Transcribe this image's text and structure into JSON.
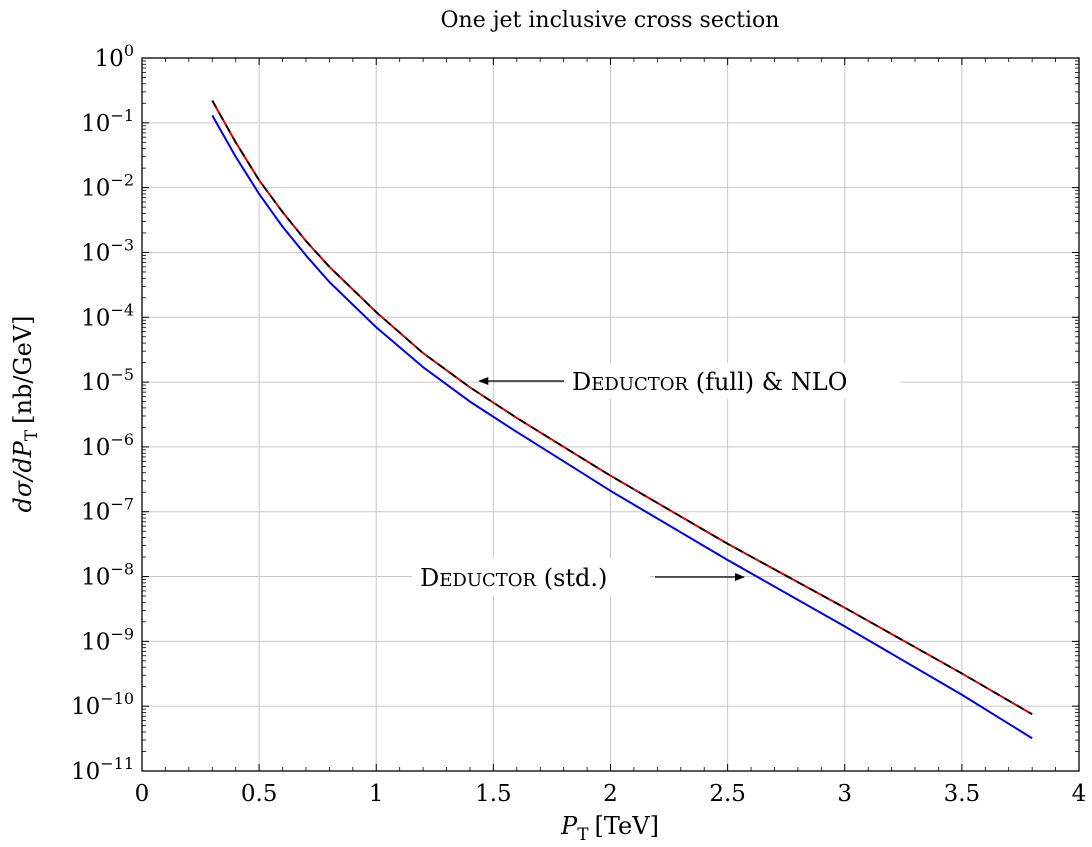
{
  "chart_data": {
    "type": "line",
    "title": "One jet inclusive cross section",
    "xlabel": "P_T [TeV]",
    "xlabel_main": "P",
    "xlabel_sub": "T",
    "xlabel_unit": "[TeV]",
    "ylabel": "dσ/dP_T [nb/GeV]",
    "ylabel_main": "dσ/dP",
    "ylabel_sub": "T",
    "ylabel_unit": "[nb/GeV]",
    "xlim": [
      0,
      4
    ],
    "ylim": [
      1e-11,
      1
    ],
    "yscale": "log",
    "grid": true,
    "x_ticks": [
      "0",
      "0.5",
      "1",
      "1.5",
      "2",
      "2.5",
      "3",
      "3.5",
      "4"
    ],
    "x_tick_values": [
      0,
      0.5,
      1,
      1.5,
      2,
      2.5,
      3,
      3.5,
      4
    ],
    "y_tick_exponents": [
      "0",
      "−1",
      "−2",
      "−3",
      "−4",
      "−5",
      "−6",
      "−7",
      "−8",
      "−9",
      "−10",
      "−11"
    ],
    "y_tick_exponent_values": [
      0,
      -1,
      -2,
      -3,
      -4,
      -5,
      -6,
      -7,
      -8,
      -9,
      -10,
      -11
    ],
    "y_tick_base": "10",
    "series": [
      {
        "color": "#0000ee",
        "style": "solid",
        "x": [
          0.3,
          0.4,
          0.5,
          0.6,
          0.7,
          0.8,
          1.0,
          1.2,
          1.4,
          1.6,
          1.8,
          2.0,
          2.5,
          3.0,
          3.5,
          3.8
        ],
        "y": [
          0.13,
          0.03,
          0.008,
          0.0025,
          0.0009,
          0.00035,
          7e-05,
          1.7e-05,
          5e-06,
          1.7e-06,
          6e-07,
          2.1e-07,
          1.8e-08,
          1.7e-09,
          1.5e-10,
          3.2e-11
        ]
      },
      {
        "color": "#dd0000",
        "style": "solid",
        "x": [
          0.3,
          0.4,
          0.5,
          0.6,
          0.7,
          0.8,
          1.0,
          1.2,
          1.4,
          1.6,
          1.8,
          2.0,
          2.5,
          3.0,
          3.5,
          3.8
        ],
        "y": [
          0.22,
          0.05,
          0.013,
          0.0042,
          0.0015,
          0.0006,
          0.00012,
          2.8e-05,
          8.3e-06,
          2.8e-06,
          1e-06,
          3.6e-07,
          3.2e-08,
          3.3e-09,
          3.2e-10,
          7.5e-11
        ]
      },
      {
        "color": "#000000",
        "style": "dashed",
        "x": [
          0.3,
          0.4,
          0.5,
          0.6,
          0.7,
          0.8,
          1.0,
          1.2,
          1.4,
          1.6,
          1.8,
          2.0,
          2.5,
          3.0,
          3.5,
          3.8
        ],
        "y": [
          0.22,
          0.05,
          0.013,
          0.0042,
          0.0015,
          0.0006,
          0.00012,
          2.8e-05,
          8.3e-06,
          2.8e-06,
          1e-06,
          3.6e-07,
          3.2e-08,
          3.3e-09,
          3.2e-10,
          7.5e-11
        ]
      }
    ],
    "annotations": [
      {
        "text_first": "D",
        "text_smallcaps": "EDUCTOR",
        "text_rest": " (full) & NLO",
        "arrow_to": {
          "x": 1.44,
          "y": 1e-05
        }
      },
      {
        "text_first": "D",
        "text_smallcaps": "EDUCTOR",
        "text_rest": " (std.)",
        "arrow_to": {
          "x": 2.57,
          "y": 1e-08
        }
      }
    ]
  }
}
